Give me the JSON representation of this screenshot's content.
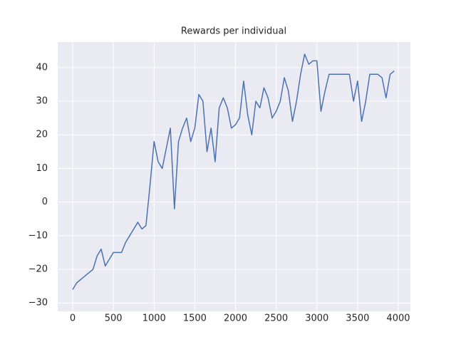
{
  "chart_data": {
    "type": "line",
    "title": "Rewards per individual",
    "x": [
      0,
      50,
      100,
      150,
      200,
      250,
      300,
      350,
      400,
      450,
      500,
      550,
      600,
      650,
      700,
      750,
      800,
      850,
      900,
      950,
      1000,
      1050,
      1100,
      1150,
      1200,
      1250,
      1300,
      1350,
      1400,
      1450,
      1500,
      1550,
      1600,
      1650,
      1700,
      1750,
      1800,
      1850,
      1900,
      1950,
      2000,
      2050,
      2100,
      2150,
      2200,
      2250,
      2300,
      2350,
      2400,
      2450,
      2500,
      2550,
      2600,
      2650,
      2700,
      2750,
      2800,
      2850,
      2900,
      2950,
      3000,
      3050,
      3100,
      3150,
      3200,
      3250,
      3300,
      3350,
      3400,
      3450,
      3500,
      3550,
      3600,
      3650,
      3700,
      3750,
      3800,
      3850,
      3900,
      3950
    ],
    "series": [
      {
        "color": "#4c72b0",
        "values": [
          -26,
          -24,
          -23,
          -22,
          -21,
          -20,
          -16,
          -14,
          -19,
          -17,
          -15,
          -15,
          -15,
          -12,
          -10,
          -8,
          -6,
          -8,
          -7,
          5,
          18,
          12,
          10,
          16,
          22,
          -2,
          18,
          22,
          25,
          18,
          22,
          32,
          30,
          15,
          22,
          12,
          28,
          31,
          28,
          22,
          23,
          25,
          36,
          26,
          20,
          30,
          28,
          34,
          31,
          25,
          27,
          30,
          37,
          33,
          24,
          30,
          38,
          44,
          41,
          42,
          42,
          27,
          33,
          38,
          38,
          38,
          38,
          38,
          38,
          30,
          36,
          24,
          30,
          38,
          38,
          38,
          37,
          31,
          38,
          39
        ]
      }
    ],
    "xlim": [
      -184,
      4149
    ],
    "ylim": [
      -32.5,
      47.6
    ],
    "xticks": [
      0,
      500,
      1000,
      1500,
      2000,
      2500,
      3000,
      3500,
      4000
    ],
    "yticks": [
      {
        "value": -30,
        "label": "−30"
      },
      {
        "value": -20,
        "label": "−20"
      },
      {
        "value": -10,
        "label": "−10"
      },
      0,
      10,
      20,
      30,
      40
    ],
    "grid": true
  }
}
